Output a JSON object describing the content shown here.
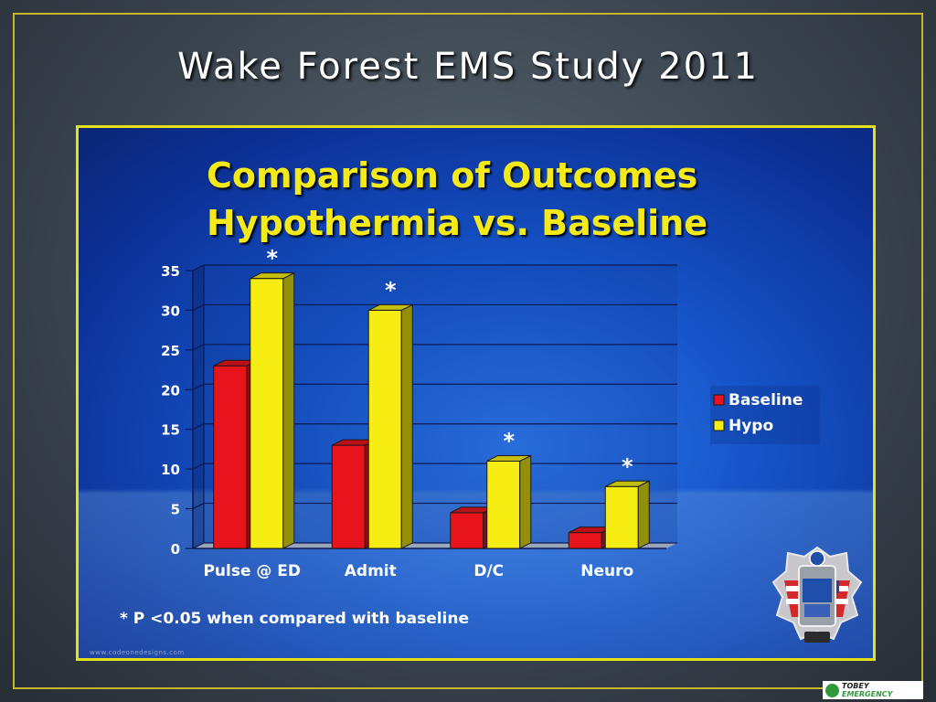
{
  "slide": {
    "title": "Wake Forest EMS Study 2011"
  },
  "chart_data": {
    "type": "bar",
    "title": "Comparison of Outcomes",
    "subtitle": "Hypothermia vs. Baseline",
    "categories": [
      "Pulse @ ED",
      "Admit",
      "D/C",
      "Neuro"
    ],
    "series": [
      {
        "name": "Baseline",
        "values": [
          23,
          13,
          4.5,
          2
        ],
        "color": "#e8141b"
      },
      {
        "name": "Hypo",
        "values": [
          34,
          30,
          11,
          7.8
        ],
        "color": "#f6ee12"
      }
    ],
    "annotations": [
      "*",
      "*",
      "*",
      "*"
    ],
    "yticks": [
      "0",
      "5",
      "10",
      "15",
      "20",
      "25",
      "30",
      "35"
    ],
    "ylim": [
      0,
      35
    ],
    "grid": true,
    "legend_position": "right",
    "footnote": "* P <0.05 when compared with baseline"
  },
  "panel": {
    "url_text": "www.codeonedesigns.com"
  },
  "logo": {
    "brand_name": "TOBEY",
    "brand_suffix": "EMERGENCY",
    "accent_color": "#2f9a3a"
  }
}
